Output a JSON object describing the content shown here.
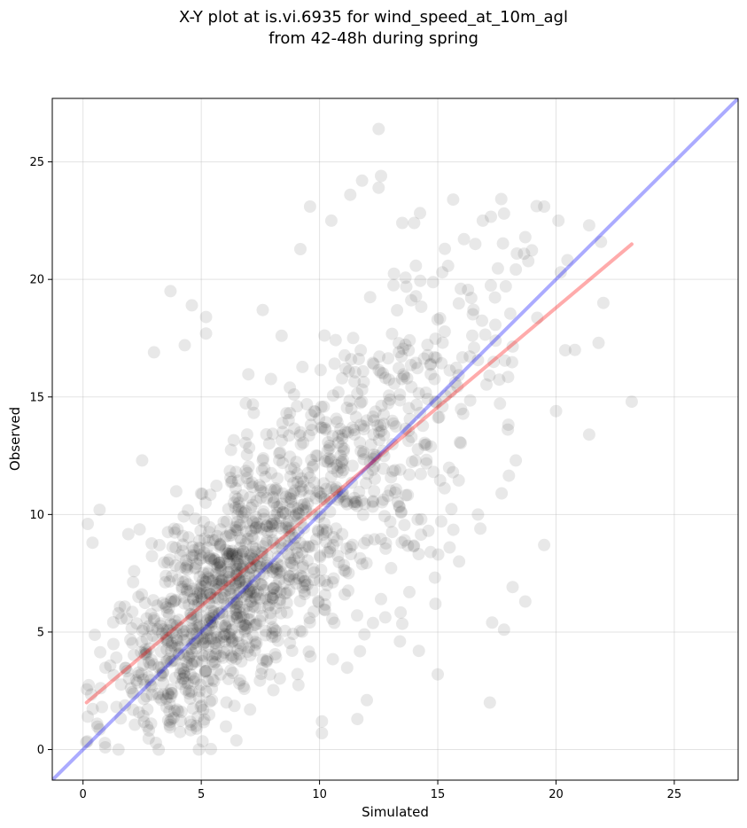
{
  "chart_data": {
    "type": "scatter",
    "title": "X-Y plot at is.vi.6935 for wind_speed_at_10m_agl",
    "subtitle": "from 42-48h during spring",
    "xlabel": "Simulated",
    "ylabel": "Observed",
    "xlim": [
      -1.3,
      27.7
    ],
    "ylim": [
      -1.3,
      27.7
    ],
    "xticks": [
      0,
      5,
      10,
      15,
      20,
      25
    ],
    "yticks": [
      0,
      5,
      10,
      15,
      20,
      25
    ],
    "grid": true,
    "colors": {
      "points": "#000000",
      "identity_line": "#0000ff",
      "fit_line": "#ff0000",
      "grid": "#b0b0b0"
    },
    "series": [
      {
        "kind": "scatter",
        "approx_count": 1500,
        "sample_points": [
          [
            0.2,
            9.6
          ],
          [
            0.4,
            8.8
          ],
          [
            0.7,
            10.2
          ],
          [
            1.5,
            5.8
          ],
          [
            2.5,
            12.3
          ],
          [
            3.0,
            16.9
          ],
          [
            3.7,
            19.5
          ],
          [
            4.3,
            17.2
          ],
          [
            4.6,
            18.9
          ],
          [
            5.2,
            18.4
          ],
          [
            5.2,
            17.7
          ],
          [
            7.6,
            18.7
          ],
          [
            9.6,
            23.1
          ],
          [
            10.5,
            22.5
          ],
          [
            11.3,
            23.6
          ],
          [
            11.8,
            24.2
          ],
          [
            12.5,
            26.4
          ],
          [
            12.6,
            24.4
          ],
          [
            12.5,
            23.9
          ],
          [
            13.5,
            22.4
          ],
          [
            14.0,
            22.4
          ],
          [
            15.3,
            21.3
          ],
          [
            16.9,
            22.5
          ],
          [
            17.8,
            22.8
          ],
          [
            18.7,
            21.8
          ],
          [
            19.5,
            23.1
          ],
          [
            20.1,
            22.5
          ],
          [
            21.4,
            22.3
          ],
          [
            21.9,
            21.6
          ],
          [
            20.2,
            20.3
          ],
          [
            22.0,
            19.0
          ],
          [
            21.8,
            17.3
          ],
          [
            20.8,
            17.0
          ],
          [
            23.2,
            14.8
          ],
          [
            21.4,
            13.4
          ],
          [
            20.0,
            14.4
          ],
          [
            19.5,
            8.7
          ],
          [
            18.7,
            6.3
          ],
          [
            17.3,
            5.4
          ],
          [
            17.8,
            5.1
          ],
          [
            17.2,
            2.0
          ],
          [
            15.0,
            3.2
          ],
          [
            14.9,
            6.2
          ],
          [
            14.2,
            4.2
          ],
          [
            13.4,
            4.6
          ],
          [
            12.0,
            2.1
          ],
          [
            11.6,
            1.3
          ],
          [
            10.1,
            1.2
          ],
          [
            10.1,
            0.7
          ],
          [
            4.9,
            0.0
          ],
          [
            3.2,
            0.0
          ],
          [
            1.5,
            0.0
          ],
          [
            0.6,
            1.1
          ],
          [
            0.2,
            1.4
          ],
          [
            18.3,
            12.3
          ],
          [
            17.7,
            10.9
          ],
          [
            16.7,
            10.0
          ],
          [
            16.8,
            9.4
          ],
          [
            15.9,
            8.0
          ],
          [
            15.5,
            8.6
          ],
          [
            14.3,
            9.8
          ],
          [
            14.7,
            8.4
          ],
          [
            13.6,
            8.9
          ],
          [
            13.8,
            6.7
          ],
          [
            12.6,
            6.4
          ],
          [
            11.9,
            4.9
          ]
        ],
        "density_centers": [
          {
            "x": 5.0,
            "y": 5.5,
            "sx": 2.1,
            "sy": 2.3,
            "weight": 0.45
          },
          {
            "x": 8.5,
            "y": 9.0,
            "sx": 2.8,
            "sy": 3.0,
            "weight": 0.35
          },
          {
            "x": 13.0,
            "y": 13.5,
            "sx": 3.0,
            "sy": 3.3,
            "weight": 0.2
          }
        ]
      },
      {
        "kind": "line",
        "role": "identity",
        "x": [
          -1.3,
          27.7
        ],
        "y": [
          -1.3,
          27.7
        ]
      },
      {
        "kind": "line",
        "role": "fit",
        "x": [
          0.15,
          23.2
        ],
        "y": [
          2.0,
          21.5
        ]
      }
    ]
  }
}
